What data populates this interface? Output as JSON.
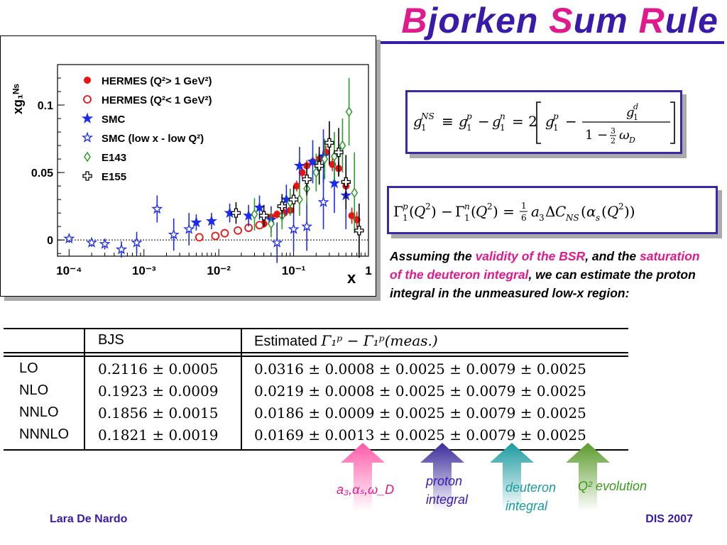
{
  "title": {
    "c1": "B",
    "r1": "jorken ",
    "c2": "S",
    "r2": "um ",
    "c3": "R",
    "r3": "ule"
  },
  "equations": {
    "eq1_label": "g₁ᴺˢ ≡ g₁ᵖ − g₁ⁿ = 2 [ g₁ᵖ − g₁ᵈ / (1 − ³⁄₂ ω_D) ]",
    "eq2_label": "Γ₁ᵖ(Q²) − Γ₁ⁿ(Q²) = ⅙ a₃ ΔC_NS(α_s(Q²))"
  },
  "paragraph": {
    "t1": "Assuming the ",
    "h1": "validity of the BSR",
    "t2": ", and the ",
    "h2": "saturation of the deuteron integral",
    "t3": ", we can estimate the proton integral in the unmeasured low-x region:"
  },
  "table": {
    "headers": {
      "bjs": "BJS",
      "est_prefix": "Estimated",
      "est_math": "Γ₁ᵖ − Γ₁ᵖ(meas.)"
    },
    "rows": [
      {
        "order": "LO",
        "bjs": "0.2116 ± 0.0005",
        "est": "0.0316 ± 0.0008 ± 0.0025 ± 0.0079 ± 0.0025"
      },
      {
        "order": "NLO",
        "bjs": "0.1923 ± 0.0009",
        "est": "0.0219 ± 0.0008 ± 0.0025 ± 0.0079 ± 0.0025"
      },
      {
        "order": "NNLO",
        "bjs": "0.1856 ± 0.0015",
        "est": "0.0186 ± 0.0009 ± 0.0025 ± 0.0079 ± 0.0025"
      },
      {
        "order": "NNNLO",
        "bjs": "0.1821 ± 0.0019",
        "est": "0.0169 ± 0.0013 ± 0.0025 ± 0.0079 ± 0.0025"
      }
    ]
  },
  "arrows": [
    {
      "label": "a₃,αₛ,ω_D",
      "color": "#ff66aa"
    },
    {
      "label1": "proton",
      "label2": "integral",
      "color": "#4a3aa0"
    },
    {
      "label1": "deuteron",
      "label2": "integral",
      "color": "#2aa0a0"
    },
    {
      "label": "Q² evolution",
      "color": "#6aaa2a"
    }
  ],
  "footer": {
    "left": "Lara De Nardo",
    "right": "DIS 2007"
  },
  "chart_data": {
    "type": "scatter",
    "xlabel": "x",
    "ylabel": "xg₁ᴺˢ",
    "xscale": "log",
    "xlim": [
      7e-05,
      1
    ],
    "ylim": [
      -0.012,
      0.13
    ],
    "xticks": [
      "10⁻⁴",
      "10⁻³",
      "10⁻²",
      "10⁻¹",
      "1"
    ],
    "yticks": [
      "0",
      "0.05",
      "0.1"
    ],
    "legend_position": "top-left",
    "series": [
      {
        "name": "HERMES (Q²> 1 GeV²)",
        "marker": "filled-circle",
        "color": "#ee1111",
        "points": [
          [
            0.04,
            0.012
          ],
          [
            0.05,
            0.017
          ],
          [
            0.06,
            0.019
          ],
          [
            0.075,
            0.02
          ],
          [
            0.09,
            0.022
          ],
          [
            0.11,
            0.04
          ],
          [
            0.13,
            0.05
          ],
          [
            0.15,
            0.055
          ],
          [
            0.18,
            0.058
          ],
          [
            0.22,
            0.06
          ],
          [
            0.27,
            0.065
          ],
          [
            0.33,
            0.056
          ],
          [
            0.4,
            0.053
          ],
          [
            0.5,
            0.04
          ],
          [
            0.6,
            0.018
          ],
          [
            0.7,
            0.015
          ]
        ],
        "err": [
          0.003,
          0.003,
          0.003,
          0.003,
          0.003,
          0.004,
          0.004,
          0.004,
          0.004,
          0.005,
          0.005,
          0.005,
          0.005,
          0.006,
          0.006,
          0.006
        ]
      },
      {
        "name": "HERMES (Q²< 1 GeV²)",
        "marker": "open-circle",
        "color": "#ee1111",
        "points": [
          [
            0.0055,
            0.002
          ],
          [
            0.009,
            0.003
          ],
          [
            0.012,
            0.005
          ],
          [
            0.018,
            0.007
          ],
          [
            0.025,
            0.009
          ],
          [
            0.035,
            0.011
          ]
        ],
        "err": [
          0.002,
          0.002,
          0.002,
          0.002,
          0.002,
          0.002
        ]
      },
      {
        "name": "SMC",
        "marker": "filled-star",
        "color": "#1a2aee",
        "points": [
          [
            0.005,
            0.013
          ],
          [
            0.008,
            0.014
          ],
          [
            0.014,
            0.02
          ],
          [
            0.025,
            0.018
          ],
          [
            0.035,
            0.024
          ],
          [
            0.05,
            0.015
          ],
          [
            0.08,
            0.03
          ],
          [
            0.12,
            0.055
          ],
          [
            0.18,
            0.058
          ],
          [
            0.25,
            0.062
          ],
          [
            0.35,
            0.042
          ],
          [
            0.5,
            0.033
          ]
        ],
        "err": [
          0.006,
          0.006,
          0.007,
          0.008,
          0.009,
          0.01,
          0.011,
          0.014,
          0.016,
          0.02,
          0.022,
          0.025
        ]
      },
      {
        "name": "SMC (low x - low Q²)",
        "marker": "open-star",
        "color": "#1a2aee",
        "points": [
          [
            0.0001,
            0.001
          ],
          [
            0.0002,
            -0.002
          ],
          [
            0.0003,
            -0.003
          ],
          [
            0.0005,
            -0.007
          ],
          [
            0.0008,
            -0.002
          ],
          [
            0.0015,
            0.023
          ],
          [
            0.0025,
            0.004
          ],
          [
            0.004,
            0.008
          ],
          [
            0.06,
            -0.002
          ],
          [
            0.1,
            0.008
          ],
          [
            0.15,
            0.01
          ],
          [
            0.25,
            0.028
          ]
        ],
        "err": [
          0.003,
          0.003,
          0.004,
          0.006,
          0.008,
          0.01,
          0.012,
          0.012,
          0.015,
          0.016,
          0.018,
          0.02
        ]
      },
      {
        "name": "E143",
        "marker": "open-diamond",
        "color": "#2a9a2a",
        "points": [
          [
            0.03,
            0.019
          ],
          [
            0.05,
            0.012
          ],
          [
            0.07,
            0.018
          ],
          [
            0.09,
            0.028
          ],
          [
            0.12,
            0.03
          ],
          [
            0.15,
            0.038
          ],
          [
            0.2,
            0.05
          ],
          [
            0.26,
            0.06
          ],
          [
            0.35,
            0.062
          ],
          [
            0.45,
            0.07
          ],
          [
            0.55,
            0.095
          ],
          [
            0.65,
            0.035
          ]
        ],
        "err": [
          0.012,
          0.01,
          0.01,
          0.01,
          0.012,
          0.012,
          0.014,
          0.015,
          0.018,
          0.02,
          0.025,
          0.03
        ]
      },
      {
        "name": "E155",
        "marker": "open-cross",
        "color": "#000000",
        "points": [
          [
            0.017,
            0.02
          ],
          [
            0.04,
            0.018
          ],
          [
            0.07,
            0.025
          ],
          [
            0.1,
            0.03
          ],
          [
            0.15,
            0.045
          ],
          [
            0.22,
            0.055
          ],
          [
            0.3,
            0.072
          ],
          [
            0.4,
            0.065
          ],
          [
            0.5,
            0.043
          ],
          [
            0.75,
            0.007
          ]
        ],
        "err": [
          0.008,
          0.008,
          0.009,
          0.01,
          0.012,
          0.014,
          0.016,
          0.018,
          0.02,
          0.02
        ]
      }
    ]
  }
}
